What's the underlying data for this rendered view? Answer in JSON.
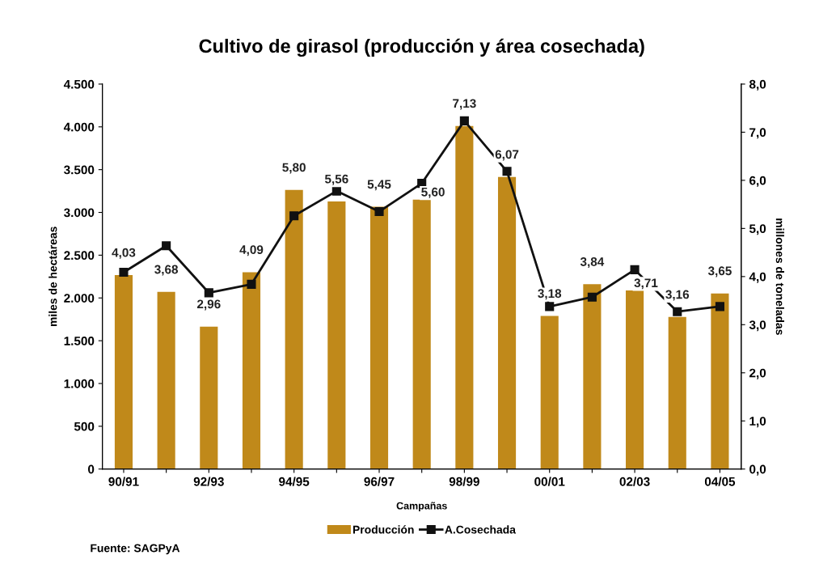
{
  "chart_data": {
    "type": "bar",
    "title": "Cultivo de girasol (producción y área cosechada)",
    "xlabel": "Campañas",
    "ylabel": "miles de hectáreas",
    "y2label": "millones de toneladas",
    "categories": [
      "90/91",
      null,
      "92/93",
      null,
      "94/95",
      null,
      "96/97",
      null,
      "98/99",
      null,
      "00/01",
      null,
      "02/03",
      null,
      "04/05"
    ],
    "series": [
      {
        "name": "Producción",
        "axis": "y2",
        "color": "#c0891a",
        "values": [
          4.03,
          3.68,
          2.96,
          4.09,
          5.8,
          5.56,
          5.45,
          5.6,
          7.13,
          6.07,
          3.18,
          3.84,
          3.71,
          3.16,
          3.65
        ],
        "value_labels": [
          "4,03",
          "3,68",
          "2,96",
          "4,09",
          "5,80",
          "5,56",
          "5,45",
          "5,60",
          "7,13",
          "6,07",
          "3,18",
          "3,84",
          "3,71",
          "3,16",
          "3,65"
        ]
      },
      {
        "name": "A.Cosechada",
        "type": "line",
        "axis": "y",
        "color": "#111111",
        "marker": "square",
        "values": [
          2300,
          2610,
          2060,
          2160,
          2960,
          3250,
          3010,
          3340,
          4070,
          3480,
          1900,
          2010,
          2330,
          1840,
          1900
        ]
      }
    ],
    "ylim": [
      0,
      4500
    ],
    "yticks": [
      0,
      500,
      {
        "value": 1000,
        "label": "1.000"
      },
      {
        "value": 1500,
        "label": "1.500"
      },
      {
        "value": 2000,
        "label": "2.000"
      },
      {
        "value": 2500,
        "label": "2.500"
      },
      {
        "value": 3000,
        "label": "3.000"
      },
      {
        "value": 3500,
        "label": "3.500"
      },
      {
        "value": 4000,
        "label": "4.000"
      },
      {
        "value": 4500,
        "label": "4.500"
      }
    ],
    "y2lim": [
      0,
      8
    ],
    "y2ticks": [
      {
        "value": 0,
        "label": "0,0"
      },
      {
        "value": 1,
        "label": "1,0"
      },
      {
        "value": 2,
        "label": "2,0"
      },
      {
        "value": 3,
        "label": "3,0"
      },
      {
        "value": 4,
        "label": "4,0"
      },
      {
        "value": 5,
        "label": "5,0"
      },
      {
        "value": 6,
        "label": "6,0"
      },
      {
        "value": 7,
        "label": "7,0"
      },
      {
        "value": 8,
        "label": "8,0"
      }
    ],
    "grid": false,
    "legend": "bottom",
    "annotations": [
      "Fuente: SAGPyA"
    ]
  }
}
